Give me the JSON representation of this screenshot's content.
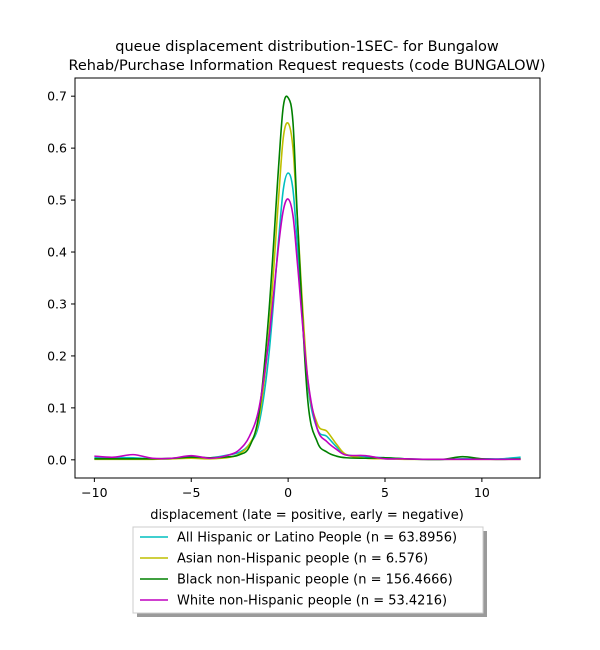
{
  "chart_data": {
    "type": "line",
    "title": "queue displacement distribution-1SEC-  for Bungalow\nRehab/Purchase Information Request  requests (code BUNGALOW)",
    "title_lines": [
      "queue displacement distribution-1SEC-  for Bungalow",
      "Rehab/Purchase Information Request  requests (code BUNGALOW)"
    ],
    "xlabel": "displacement (late = positive, early = negative)",
    "ylabel": "",
    "xlim": [
      -11,
      13
    ],
    "ylim": [
      -0.035,
      0.735
    ],
    "xticks": [
      -10,
      -5,
      0,
      5,
      10
    ],
    "yticks": [
      0.0,
      0.1,
      0.2,
      0.3,
      0.4,
      0.5,
      0.6,
      0.7
    ],
    "xtick_labels": [
      "−10",
      "−5",
      "0",
      "5",
      "10"
    ],
    "ytick_labels": [
      "0.0",
      "0.1",
      "0.2",
      "0.3",
      "0.4",
      "0.5",
      "0.6",
      "0.7"
    ],
    "grid": false,
    "legend_position": "below-center",
    "series": [
      {
        "name": "All Hispanic or Latino People (n = 63.8956)",
        "color": "#00bfbf",
        "x": [
          -10,
          -9,
          -8,
          -7,
          -6,
          -5,
          -4,
          -3,
          -2.5,
          -2,
          -1.5,
          -1,
          -0.5,
          -0.25,
          0,
          0.25,
          0.5,
          1,
          1.5,
          2,
          2.5,
          3,
          4,
          5,
          6,
          7,
          8,
          9,
          10,
          11,
          12
        ],
        "y": [
          0.004,
          0.004,
          0.004,
          0.002,
          0.002,
          0.006,
          0.004,
          0.01,
          0.015,
          0.03,
          0.07,
          0.2,
          0.42,
          0.52,
          0.552,
          0.52,
          0.4,
          0.15,
          0.06,
          0.045,
          0.025,
          0.01,
          0.006,
          0.004,
          0.002,
          0.001,
          0.001,
          0.002,
          0.002,
          0.002,
          0.005
        ]
      },
      {
        "name": "Asian non-Hispanic people (n = 6.576)",
        "color": "#bfbf00",
        "x": [
          -10,
          -9,
          -8,
          -7,
          -6,
          -5,
          -4,
          -3,
          -2.5,
          -2,
          -1.5,
          -1,
          -0.5,
          -0.25,
          0,
          0.25,
          0.5,
          1,
          1.5,
          2,
          2.5,
          3,
          4,
          5,
          6,
          7,
          8,
          9,
          10,
          11,
          12
        ],
        "y": [
          0.001,
          0.001,
          0.001,
          0.001,
          0.002,
          0.003,
          0.002,
          0.005,
          0.012,
          0.03,
          0.08,
          0.24,
          0.5,
          0.62,
          0.648,
          0.6,
          0.45,
          0.16,
          0.07,
          0.055,
          0.03,
          0.01,
          0.003,
          0.002,
          0.001,
          0.001,
          0.001,
          0.001,
          0.001,
          0.001,
          0.001
        ]
      },
      {
        "name": "Black non-Hispanic people (n = 156.4666)",
        "color": "#008000",
        "x": [
          -10,
          -9,
          -8,
          -7,
          -6,
          -5,
          -4,
          -3,
          -2.5,
          -2,
          -1.5,
          -1,
          -0.5,
          -0.25,
          0,
          0.25,
          0.5,
          1,
          1.5,
          2,
          2.5,
          3,
          4,
          5,
          6,
          7,
          8,
          9,
          10,
          11,
          12
        ],
        "y": [
          0.002,
          0.002,
          0.002,
          0.002,
          0.003,
          0.005,
          0.004,
          0.006,
          0.01,
          0.025,
          0.09,
          0.28,
          0.56,
          0.68,
          0.697,
          0.65,
          0.45,
          0.12,
          0.035,
          0.015,
          0.007,
          0.004,
          0.003,
          0.004,
          0.002,
          0.001,
          0.001,
          0.006,
          0.002,
          0.001,
          0.002
        ]
      },
      {
        "name": "White non-Hispanic people (n = 53.4216)",
        "color": "#bf00bf",
        "x": [
          -10,
          -9,
          -8,
          -7,
          -6,
          -5,
          -4,
          -3,
          -2.5,
          -2,
          -1.5,
          -1,
          -0.5,
          -0.25,
          0,
          0.25,
          0.5,
          1,
          1.5,
          2,
          2.5,
          3,
          4,
          5,
          6,
          7,
          8,
          9,
          10,
          11,
          12
        ],
        "y": [
          0.007,
          0.005,
          0.01,
          0.003,
          0.003,
          0.008,
          0.003,
          0.01,
          0.02,
          0.045,
          0.1,
          0.23,
          0.41,
          0.48,
          0.502,
          0.47,
          0.37,
          0.16,
          0.06,
          0.035,
          0.02,
          0.009,
          0.008,
          0.002,
          0.002,
          0.001,
          0.001,
          0.001,
          0.001,
          0.001,
          0.001
        ]
      }
    ]
  }
}
